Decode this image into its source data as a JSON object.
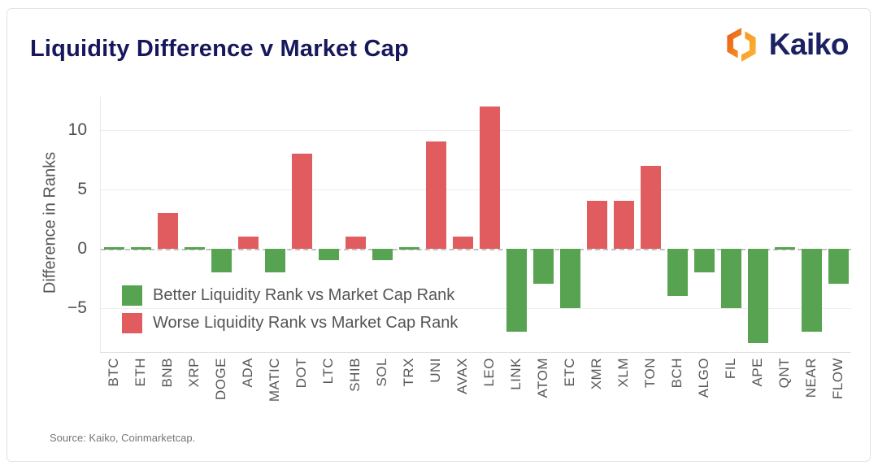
{
  "header": {
    "brand": "Kaiko"
  },
  "colors": {
    "title_navy": "#17175c",
    "brand_navy": "#1c2161",
    "brand_orange_dark": "#ec6e1e",
    "brand_orange_light": "#f9a11b",
    "positive_red": "#e05c5f",
    "negative_green": "#58a351",
    "grid_gray": "#eeeeee",
    "text_gray": "#565656"
  },
  "chart_data": {
    "type": "bar",
    "title": "Liquidity Difference v Market Cap",
    "xlabel": "",
    "ylabel": "Difference in Ranks",
    "categories": [
      "BTC",
      "ETH",
      "BNB",
      "XRP",
      "DOGE",
      "ADA",
      "MATIC",
      "DOT",
      "LTC",
      "SHIB",
      "SOL",
      "TRX",
      "UNI",
      "AVAX",
      "LEO",
      "LINK",
      "ATOM",
      "ETC",
      "XMR",
      "XLM",
      "TON",
      "BCH",
      "ALGO",
      "FIL",
      "APE",
      "QNT",
      "NEAR",
      "FLOW"
    ],
    "values": [
      0,
      0,
      3,
      0,
      -2,
      1,
      -2,
      8,
      -1,
      1,
      -1,
      0,
      9,
      1,
      12,
      -7,
      -3,
      -5,
      4,
      4,
      7,
      -4,
      -2,
      -5,
      -8,
      0,
      -7,
      -3
    ],
    "ylim": [
      -8.8,
      12.8
    ],
    "yticks": [
      {
        "label": "10",
        "value": 10
      },
      {
        "label": "5",
        "value": 5
      },
      {
        "label": "0",
        "value": 0
      },
      {
        "label": "−5",
        "value": -5
      }
    ],
    "grid": true,
    "legend_position": "lower-left-inside",
    "legend": [
      {
        "label": "Better Liquidity Rank vs Market Cap Rank",
        "color": "#58a351"
      },
      {
        "label": "Worse Liquidity Rank vs Market Cap Rank",
        "color": "#e05c5f"
      }
    ],
    "bar_colors": {
      "positive": "#e05c5f",
      "negative": "#58a351",
      "zero": "#58a351"
    }
  },
  "footer": {
    "source": "Source: Kaiko, Coinmarketcap."
  }
}
